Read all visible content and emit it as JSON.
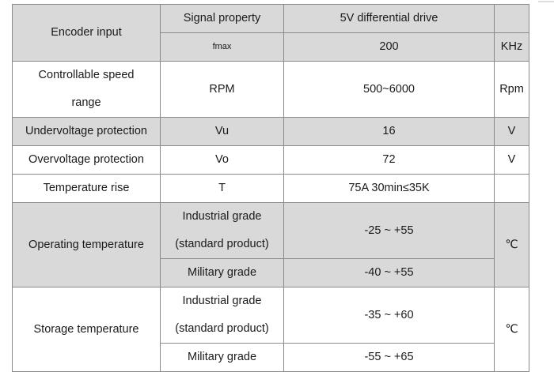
{
  "encoder": {
    "label": "Encoder input",
    "signal_property": "Signal property",
    "drive": "5V differential drive",
    "fmax_symbol": "fmax",
    "fmax_value": "200",
    "fmax_unit": "KHz"
  },
  "speed": {
    "label_line1": "Controllable speed",
    "label_line2": "range",
    "symbol": "RPM",
    "value": "500~6000",
    "unit": "Rpm"
  },
  "undervoltage": {
    "label": "Undervoltage protection",
    "symbol": "Vu",
    "value": "16",
    "unit": "V"
  },
  "overvoltage": {
    "label": "Overvoltage protection",
    "symbol": "Vo",
    "value": "72",
    "unit": "V"
  },
  "temperature_rise": {
    "label": "Temperature rise",
    "symbol": "T",
    "value": "75A   30min≤35K"
  },
  "operating": {
    "label": "Operating temperature",
    "industrial_line1": "Industrial grade",
    "industrial_line2": "(standard product)",
    "industrial_value": "-25 ~ +55",
    "military": "Military grade",
    "military_value": "-40 ~ +55",
    "unit": "℃"
  },
  "storage": {
    "label": "Storage temperature",
    "industrial_line1": "Industrial grade",
    "industrial_line2": "(standard product)",
    "industrial_value": "-35 ~ +60",
    "military": "Military grade",
    "military_value": "-55 ~ +65",
    "unit": "℃"
  }
}
